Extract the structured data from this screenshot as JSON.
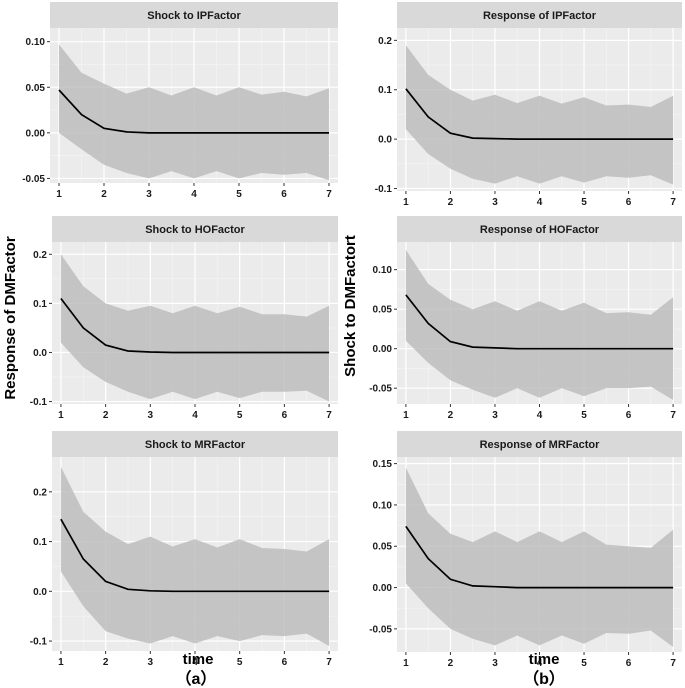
{
  "colors": {
    "panel_bg": "#ebebeb",
    "strip_bg": "#d9d9d9",
    "grid_major": "#ffffff",
    "grid_minor": "#f5f5f5",
    "band": "#b8b8b8",
    "line": "#000000"
  },
  "labels": {
    "left_ylabel": "Response of DMFactor",
    "right_ylabel": "Shock to DMFactort",
    "x_label_left": "time",
    "x_label_right": "time",
    "panel_a": "（a）",
    "panel_b": "（b）"
  },
  "chart_data": [
    {
      "type": "line",
      "title": "Shock to IPFactor",
      "xlabel": "time",
      "ylabel": "Response of DMFactor",
      "x": [
        1,
        1.5,
        2,
        2.5,
        3,
        3.5,
        4,
        4.5,
        5,
        5.5,
        6,
        6.5,
        7
      ],
      "yticks": [
        -0.05,
        0,
        0.05,
        0.1
      ],
      "ytick_labels": [
        "-0.05",
        "0.00",
        "0.05",
        "0.10"
      ],
      "xticks": [
        1,
        2,
        3,
        4,
        5,
        6,
        7
      ],
      "xtick_labels": [
        "1",
        "2",
        "3",
        "4",
        "5",
        "6",
        "7"
      ],
      "ylim": [
        -0.055,
        0.115
      ],
      "xlim": [
        0.8,
        7.2
      ],
      "series": [
        {
          "name": "response",
          "values": [
            0.047,
            0.02,
            0.005,
            0.001,
            0.0,
            0.0,
            0.0,
            0.0,
            0.0,
            0.0,
            0.0,
            0.0,
            0.0
          ]
        },
        {
          "name": "upper",
          "values": [
            0.097,
            0.066,
            0.054,
            0.043,
            0.05,
            0.041,
            0.05,
            0.041,
            0.05,
            0.042,
            0.045,
            0.04,
            0.049
          ]
        },
        {
          "name": "lower",
          "values": [
            0.0,
            -0.018,
            -0.035,
            -0.044,
            -0.05,
            -0.042,
            -0.05,
            -0.042,
            -0.05,
            -0.044,
            -0.046,
            -0.044,
            -0.052
          ]
        }
      ]
    },
    {
      "type": "line",
      "title": "Response of IPFactor",
      "xlabel": "time",
      "ylabel": "Shock to DMFactort",
      "x": [
        1,
        1.5,
        2,
        2.5,
        3,
        3.5,
        4,
        4.5,
        5,
        5.5,
        6,
        6.5,
        7
      ],
      "yticks": [
        -0.1,
        0,
        0.1,
        0.2
      ],
      "ytick_labels": [
        "-0.1",
        "0.0",
        "0.1",
        "0.2"
      ],
      "xticks": [
        1,
        2,
        3,
        4,
        5,
        6,
        7
      ],
      "xtick_labels": [
        "1",
        "2",
        "3",
        "4",
        "5",
        "6",
        "7"
      ],
      "ylim": [
        -0.105,
        0.225
      ],
      "xlim": [
        0.8,
        7.2
      ],
      "series": [
        {
          "name": "response",
          "values": [
            0.102,
            0.045,
            0.012,
            0.002,
            0.001,
            0.0,
            0.0,
            0.0,
            0.0,
            0.0,
            0.0,
            0.0,
            0.0
          ]
        },
        {
          "name": "upper",
          "values": [
            0.19,
            0.13,
            0.1,
            0.078,
            0.09,
            0.073,
            0.088,
            0.072,
            0.085,
            0.068,
            0.07,
            0.065,
            0.088
          ]
        },
        {
          "name": "lower",
          "values": [
            0.02,
            -0.03,
            -0.06,
            -0.08,
            -0.09,
            -0.075,
            -0.09,
            -0.075,
            -0.088,
            -0.075,
            -0.078,
            -0.073,
            -0.092
          ]
        }
      ]
    },
    {
      "type": "line",
      "title": "Shock to HOFactor",
      "xlabel": "time",
      "ylabel": "Response of DMFactor",
      "x": [
        1,
        1.5,
        2,
        2.5,
        3,
        3.5,
        4,
        4.5,
        5,
        5.5,
        6,
        6.5,
        7
      ],
      "yticks": [
        -0.1,
        0,
        0.1,
        0.2
      ],
      "ytick_labels": [
        "-0.1",
        "0.0",
        "0.1",
        "0.2"
      ],
      "xticks": [
        1,
        2,
        3,
        4,
        5,
        6,
        7
      ],
      "xtick_labels": [
        "1",
        "2",
        "3",
        "4",
        "5",
        "6",
        "7"
      ],
      "ylim": [
        -0.105,
        0.225
      ],
      "xlim": [
        0.8,
        7.2
      ],
      "series": [
        {
          "name": "response",
          "values": [
            0.11,
            0.05,
            0.015,
            0.003,
            0.001,
            0.0,
            0.0,
            0.0,
            0.0,
            0.0,
            0.0,
            0.0,
            0.0
          ]
        },
        {
          "name": "upper",
          "values": [
            0.2,
            0.135,
            0.1,
            0.085,
            0.095,
            0.08,
            0.095,
            0.08,
            0.093,
            0.078,
            0.078,
            0.073,
            0.095
          ]
        },
        {
          "name": "lower",
          "values": [
            0.02,
            -0.03,
            -0.06,
            -0.08,
            -0.095,
            -0.08,
            -0.095,
            -0.08,
            -0.093,
            -0.08,
            -0.08,
            -0.078,
            -0.1
          ]
        }
      ]
    },
    {
      "type": "line",
      "title": "Response of HOFactor",
      "xlabel": "time",
      "ylabel": "Shock to DMFactort",
      "x": [
        1,
        1.5,
        2,
        2.5,
        3,
        3.5,
        4,
        4.5,
        5,
        5.5,
        6,
        6.5,
        7
      ],
      "yticks": [
        -0.05,
        0,
        0.05,
        0.1
      ],
      "ytick_labels": [
        "-0.05",
        "0.00",
        "0.05",
        "0.10"
      ],
      "xticks": [
        1,
        2,
        3,
        4,
        5,
        6,
        7
      ],
      "xtick_labels": [
        "1",
        "2",
        "3",
        "4",
        "5",
        "6",
        "7"
      ],
      "ylim": [
        -0.07,
        0.135
      ],
      "xlim": [
        0.8,
        7.2
      ],
      "series": [
        {
          "name": "response",
          "values": [
            0.068,
            0.032,
            0.009,
            0.002,
            0.001,
            0.0,
            0.0,
            0.0,
            0.0,
            0.0,
            0.0,
            0.0,
            0.0
          ]
        },
        {
          "name": "upper",
          "values": [
            0.125,
            0.082,
            0.062,
            0.05,
            0.06,
            0.048,
            0.06,
            0.048,
            0.058,
            0.045,
            0.046,
            0.043,
            0.065
          ]
        },
        {
          "name": "lower",
          "values": [
            0.01,
            -0.018,
            -0.04,
            -0.052,
            -0.062,
            -0.05,
            -0.062,
            -0.05,
            -0.06,
            -0.05,
            -0.05,
            -0.048,
            -0.065
          ]
        }
      ]
    },
    {
      "type": "line",
      "title": "Shock to MRFactor",
      "xlabel": "time",
      "ylabel": "Response of DMFactor",
      "x": [
        1,
        1.5,
        2,
        2.5,
        3,
        3.5,
        4,
        4.5,
        5,
        5.5,
        6,
        6.5,
        7
      ],
      "yticks": [
        -0.1,
        0,
        0.1,
        0.2
      ],
      "ytick_labels": [
        "-0.1",
        "0.0",
        "0.1",
        "0.2"
      ],
      "xticks": [
        1,
        2,
        3,
        4,
        5,
        6,
        7
      ],
      "xtick_labels": [
        "1",
        "2",
        "3",
        "4",
        "5",
        "6",
        "7"
      ],
      "ylim": [
        -0.12,
        0.27
      ],
      "xlim": [
        0.8,
        7.2
      ],
      "series": [
        {
          "name": "response",
          "values": [
            0.145,
            0.065,
            0.02,
            0.004,
            0.001,
            0.0,
            0.0,
            0.0,
            0.0,
            0.0,
            0.0,
            0.0,
            0.0
          ]
        },
        {
          "name": "upper",
          "values": [
            0.25,
            0.16,
            0.12,
            0.095,
            0.11,
            0.09,
            0.105,
            0.088,
            0.105,
            0.087,
            0.085,
            0.08,
            0.105
          ]
        },
        {
          "name": "lower",
          "values": [
            0.04,
            -0.03,
            -0.08,
            -0.095,
            -0.105,
            -0.09,
            -0.105,
            -0.09,
            -0.1,
            -0.088,
            -0.09,
            -0.085,
            -0.11
          ]
        }
      ]
    },
    {
      "type": "line",
      "title": "Response of MRFactor",
      "xlabel": "time",
      "ylabel": "Shock to DMFactort",
      "x": [
        1,
        1.5,
        2,
        2.5,
        3,
        3.5,
        4,
        4.5,
        5,
        5.5,
        6,
        6.5,
        7
      ],
      "yticks": [
        -0.05,
        0,
        0.05,
        0.1,
        0.15
      ],
      "ytick_labels": [
        "-0.05",
        "0.00",
        "0.05",
        "0.10",
        "0.15"
      ],
      "xticks": [
        1,
        2,
        3,
        4,
        5,
        6,
        7
      ],
      "xtick_labels": [
        "1",
        "2",
        "3",
        "4",
        "5",
        "6",
        "7"
      ],
      "ylim": [
        -0.078,
        0.158
      ],
      "xlim": [
        0.8,
        7.2
      ],
      "series": [
        {
          "name": "response",
          "values": [
            0.074,
            0.035,
            0.01,
            0.002,
            0.001,
            0.0,
            0.0,
            0.0,
            0.0,
            0.0,
            0.0,
            0.0,
            0.0
          ]
        },
        {
          "name": "upper",
          "values": [
            0.145,
            0.09,
            0.065,
            0.055,
            0.068,
            0.055,
            0.068,
            0.055,
            0.068,
            0.052,
            0.05,
            0.048,
            0.07
          ]
        },
        {
          "name": "lower",
          "values": [
            0.005,
            -0.025,
            -0.05,
            -0.062,
            -0.07,
            -0.058,
            -0.07,
            -0.058,
            -0.068,
            -0.055,
            -0.056,
            -0.052,
            -0.072
          ]
        }
      ]
    }
  ]
}
